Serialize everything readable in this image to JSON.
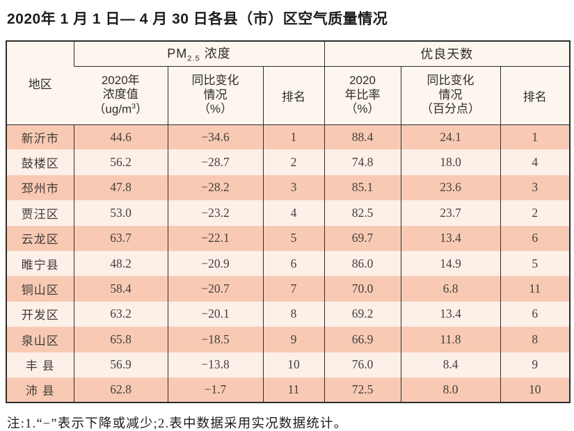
{
  "title": "2020年 1 月 1 日— 4 月 30 日各县（市）区空气质量情况",
  "note": "注:1.“−”表示下降或减少;2.表中数据采用实况数据统计。",
  "colors": {
    "row_salmon": "#f8cab4",
    "row_light": "#fcf0e8",
    "header_bg": "#fdf6ef",
    "border": "#2b2b2b"
  },
  "table": {
    "header": {
      "region": "地区",
      "pm_group": {
        "prefix": "PM",
        "sub": "2.5",
        "suffix": "浓度"
      },
      "good_group": "优良天数",
      "pm_value": {
        "line1": "2020年",
        "line2": "浓度值",
        "line3_pre": "（ug/m",
        "line3_sup": "3",
        "line3_post": "）"
      },
      "pm_change": {
        "line1": "同比变化",
        "line2": "情况",
        "line3": "（%）"
      },
      "pm_rank": "排名",
      "good_rate": {
        "line1": "2020",
        "line2": "年比率",
        "line3": "（%）"
      },
      "good_change": {
        "line1": "同比变化",
        "line2": "情况",
        "line3": "（百分点）"
      },
      "good_rank": "排名"
    },
    "rows": [
      {
        "region": "新沂市",
        "pm_value": "44.6",
        "pm_change": "−34.6",
        "pm_rank": "1",
        "good_rate": "88.4",
        "good_change": "24.1",
        "good_rank": "1"
      },
      {
        "region": "鼓楼区",
        "pm_value": "56.2",
        "pm_change": "−28.7",
        "pm_rank": "2",
        "good_rate": "74.8",
        "good_change": "18.0",
        "good_rank": "4"
      },
      {
        "region": "邳州市",
        "pm_value": "47.8",
        "pm_change": "−28.2",
        "pm_rank": "3",
        "good_rate": "85.1",
        "good_change": "23.6",
        "good_rank": "3"
      },
      {
        "region": "贾汪区",
        "pm_value": "53.0",
        "pm_change": "−23.2",
        "pm_rank": "4",
        "good_rate": "82.5",
        "good_change": "23.7",
        "good_rank": "2"
      },
      {
        "region": "云龙区",
        "pm_value": "63.7",
        "pm_change": "−22.1",
        "pm_rank": "5",
        "good_rate": "69.7",
        "good_change": "13.4",
        "good_rank": "6"
      },
      {
        "region": "睢宁县",
        "pm_value": "48.2",
        "pm_change": "−20.9",
        "pm_rank": "6",
        "good_rate": "86.0",
        "good_change": "14.9",
        "good_rank": "5"
      },
      {
        "region": "铜山区",
        "pm_value": "58.4",
        "pm_change": "−20.7",
        "pm_rank": "7",
        "good_rate": "70.0",
        "good_change": "6.8",
        "good_rank": "11"
      },
      {
        "region": "开发区",
        "pm_value": "63.2",
        "pm_change": "−20.1",
        "pm_rank": "8",
        "good_rate": "69.2",
        "good_change": "13.4",
        "good_rank": "6"
      },
      {
        "region": "泉山区",
        "pm_value": "65.8",
        "pm_change": "−18.5",
        "pm_rank": "9",
        "good_rate": "66.9",
        "good_change": "11.8",
        "good_rank": "8"
      },
      {
        "region": "丰 县",
        "pm_value": "56.9",
        "pm_change": "−13.8",
        "pm_rank": "10",
        "good_rate": "76.0",
        "good_change": "8.4",
        "good_rank": "9"
      },
      {
        "region": "沛 县",
        "pm_value": "62.8",
        "pm_change": "−1.7",
        "pm_rank": "11",
        "good_rate": "72.5",
        "good_change": "8.0",
        "good_rank": "10"
      }
    ]
  }
}
